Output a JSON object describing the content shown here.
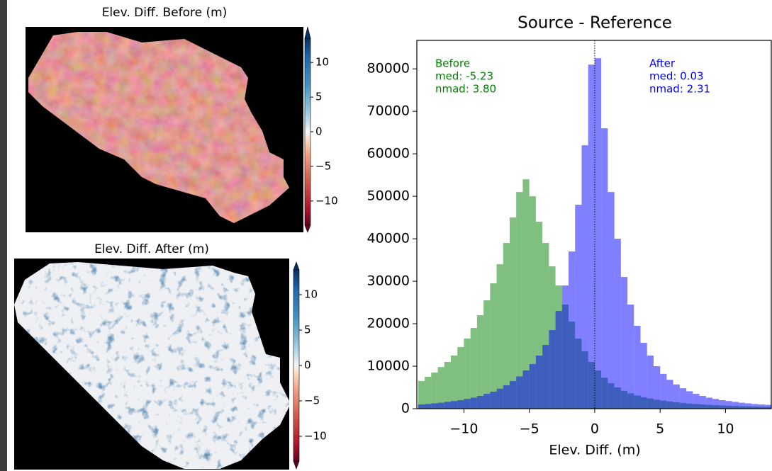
{
  "chart_data": {
    "type": "histogram",
    "title": "Source - Reference",
    "xlabel": "Elev. Diff. (m)",
    "bins": [
      -13.5,
      -13,
      -12.5,
      -12,
      -11.5,
      -11,
      -10.5,
      -10,
      -9.5,
      -9,
      -8.5,
      -8,
      -7.5,
      -7,
      -6.5,
      -6,
      -5.5,
      -5,
      -4.5,
      -4,
      -3.5,
      -3,
      -2.5,
      -2,
      -1.5,
      -1,
      -0.5,
      0,
      0.5,
      1,
      1.5,
      2,
      2.5,
      3,
      3.5,
      4,
      4.5,
      5,
      5.5,
      6,
      6.5,
      7,
      7.5,
      8,
      8.5,
      9,
      9.5,
      10,
      10.5,
      11,
      11.5,
      12,
      12.5,
      13,
      13.5
    ],
    "series": [
      {
        "name": "Before",
        "color": "#008000",
        "values": [
          6500,
          7500,
          8500,
          9800,
          11000,
          12500,
          14500,
          16500,
          19000,
          22000,
          25500,
          29500,
          34000,
          39000,
          45000,
          51000,
          54000,
          50000,
          44000,
          39000,
          33500,
          29000,
          24500,
          20500,
          16500,
          13500,
          11000,
          9000,
          7300,
          6000,
          5000,
          4200,
          3600,
          3100,
          2700,
          2400,
          2100,
          1900,
          1700,
          1500,
          1350,
          1200,
          1100,
          1000,
          900,
          820,
          750,
          680,
          620,
          570,
          520,
          480,
          440,
          400
        ],
        "annotation": [
          "Before",
          "med: -5.23",
          "nmad: 3.80"
        ]
      },
      {
        "name": "After",
        "color": "#0000ff",
        "values": [
          1000,
          1100,
          1250,
          1400,
          1600,
          1800,
          2000,
          2300,
          2600,
          3000,
          3500,
          4000,
          4700,
          5500,
          6500,
          7600,
          9000,
          10500,
          12500,
          15000,
          18500,
          23000,
          29000,
          37000,
          48000,
          62000,
          81000,
          82500,
          66000,
          51000,
          40000,
          31000,
          24500,
          19500,
          15500,
          12500,
          10000,
          8200,
          6800,
          5700,
          4800,
          4100,
          3500,
          3000,
          2600,
          2300,
          2000,
          1800,
          1600,
          1400,
          1250,
          1100,
          1000,
          900
        ],
        "annotation": [
          "After",
          "med: 0.03",
          "nmad: 2.31"
        ]
      }
    ],
    "alpha": 0.5,
    "reference_line": 0,
    "xlim": [
      -13.6,
      13.5
    ],
    "xticks": [
      {
        "value": -10,
        "label": "−10"
      },
      {
        "value": -5,
        "label": "−5"
      },
      0,
      5,
      10
    ],
    "ylim": [
      0,
      86700
    ],
    "yticks": [
      0,
      10000,
      20000,
      30000,
      40000,
      50000,
      60000,
      70000,
      80000
    ]
  },
  "maps": [
    {
      "title": "Elev. Diff. Before (m)",
      "colorbar": {
        "clim": [
          -13.5,
          13.5
        ],
        "ticks": [
          {
            "value": 10,
            "label": "10"
          },
          {
            "value": 5,
            "label": "5"
          },
          {
            "value": 0,
            "label": "0"
          },
          {
            "value": -5,
            "label": "−5"
          },
          {
            "value": -10,
            "label": "−10"
          }
        ]
      }
    },
    {
      "title": "Elev. Diff. After (m)",
      "colorbar": {
        "clim": [
          -13.5,
          13.5
        ],
        "ticks": [
          {
            "value": 10,
            "label": "10"
          },
          {
            "value": 5,
            "label": "5"
          },
          {
            "value": 0,
            "label": "0"
          },
          {
            "value": -5,
            "label": "−5"
          },
          {
            "value": -10,
            "label": "−10"
          }
        ]
      }
    }
  ]
}
